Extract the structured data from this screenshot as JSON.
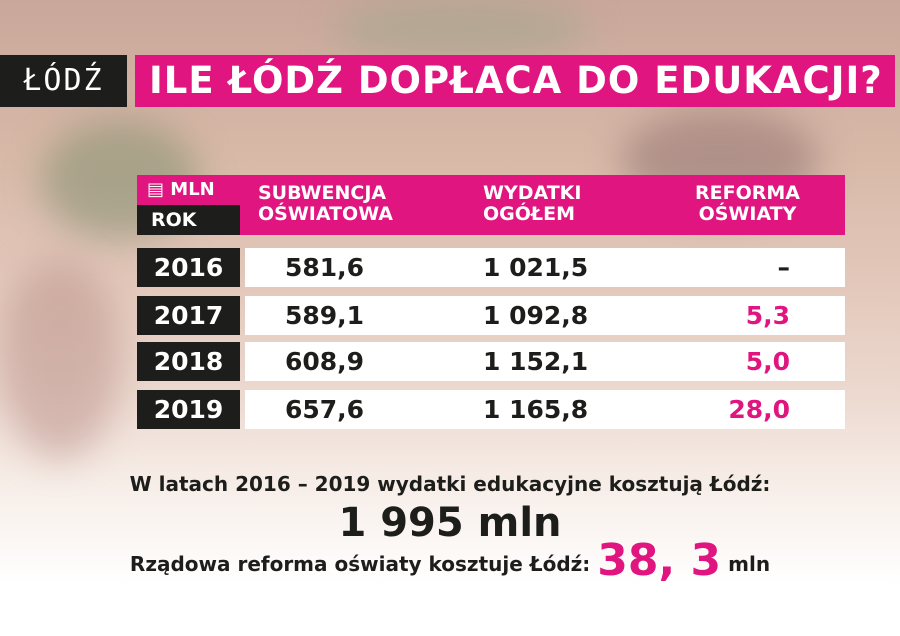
{
  "logo": "ŁÓDŹ",
  "title": "ILE ŁÓDŹ DOPŁACA DO EDUKACJI?",
  "colors": {
    "accent": "#e0157f",
    "dark": "#1d1d1b"
  },
  "table": {
    "unit_icon": "money-stack-icon",
    "unit": "MLN",
    "year_header": "ROK",
    "columns": [
      [
        "SUBWENCJA",
        "OŚWIATOWA"
      ],
      [
        "WYDATKI",
        "OGÓŁEM"
      ],
      [
        "REFORMA",
        "OŚWIATY"
      ]
    ],
    "rows": [
      {
        "year": "2016",
        "subwencja": "581,6",
        "wydatki": "1 021,5",
        "reforma": "–"
      },
      {
        "year": "2017",
        "subwencja": "589,1",
        "wydatki": "1 092,8",
        "reforma": "5,3"
      },
      {
        "year": "2018",
        "subwencja": "608,9",
        "wydatki": "1 152,1",
        "reforma": "5,0"
      },
      {
        "year": "2019",
        "subwencja": "657,6",
        "wydatki": "1 165,8",
        "reforma": "28,0"
      }
    ]
  },
  "summary": {
    "line1": "W latach 2016 – 2019 wydatki edukacyjne kosztują Łódź:",
    "total": "1 995 mln",
    "line3_prefix": "Rządowa reforma oświaty kosztuje Łódź:",
    "reform_total": "38, 3",
    "reform_unit": "mln"
  }
}
